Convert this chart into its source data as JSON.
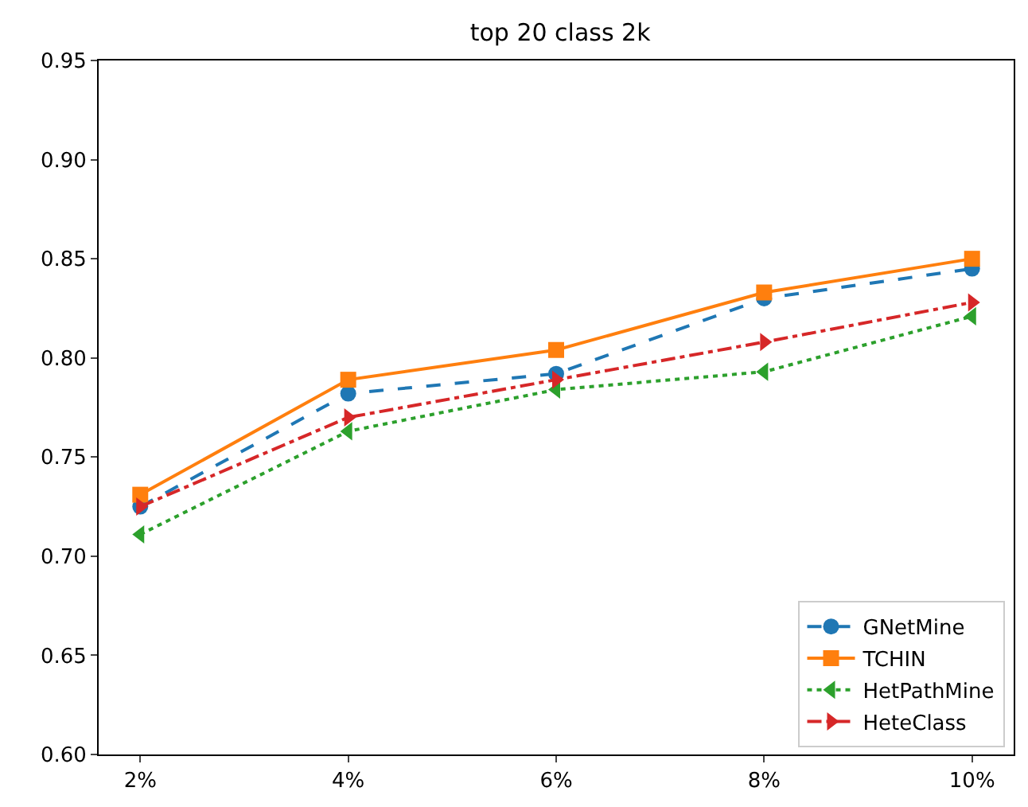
{
  "chart_data": {
    "type": "line",
    "title": "top 20 class 2k",
    "categories": [
      "2%",
      "4%",
      "6%",
      "8%",
      "10%"
    ],
    "series": [
      {
        "name": "GNetMine",
        "color": "#1f77b4",
        "marker": "circle",
        "line_style": "dashed",
        "values": [
          0.725,
          0.782,
          0.792,
          0.83,
          0.845
        ]
      },
      {
        "name": "TCHIN",
        "color": "#ff7f0e",
        "marker": "square",
        "line_style": "solid",
        "values": [
          0.731,
          0.789,
          0.804,
          0.833,
          0.85
        ]
      },
      {
        "name": "HetPathMine",
        "color": "#2ca02c",
        "marker": "triangle-left",
        "line_style": "dotted",
        "values": [
          0.711,
          0.763,
          0.784,
          0.793,
          0.821
        ]
      },
      {
        "name": "HeteClass",
        "color": "#d62728",
        "marker": "triangle-right",
        "line_style": "dashdot",
        "values": [
          0.725,
          0.77,
          0.789,
          0.808,
          0.828
        ]
      }
    ],
    "ylim": [
      0.6,
      0.95
    ],
    "yticks": [
      {
        "value": 0.6,
        "label": "0.60"
      },
      0.65,
      {
        "value": 0.7,
        "label": "0.70"
      },
      0.75,
      {
        "value": 0.8,
        "label": "0.80"
      },
      0.85,
      {
        "value": 0.9,
        "label": "0.90"
      },
      0.95
    ],
    "legend": "bottom right"
  }
}
